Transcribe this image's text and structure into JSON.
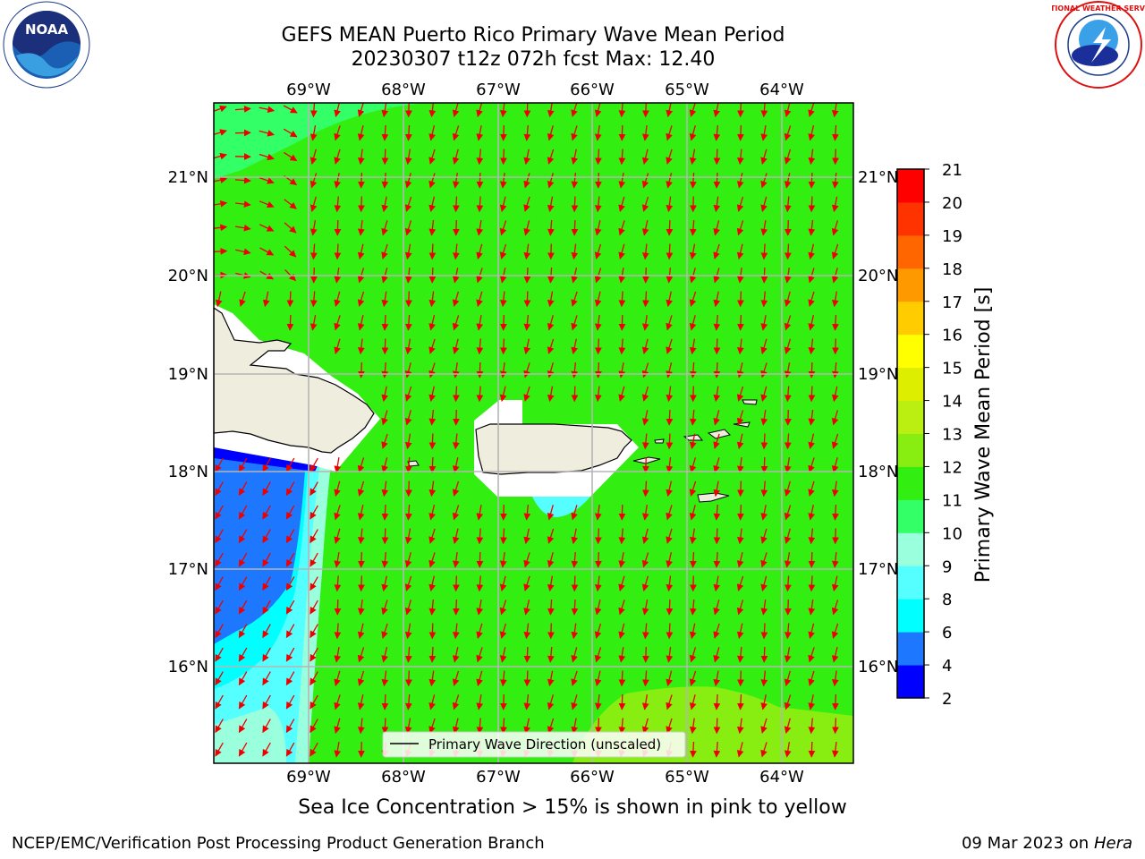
{
  "header": {
    "title_line1": "GEFS MEAN Puerto Rico Primary Wave Mean Period",
    "title_line2": "20230307 t12z 072h fcst   Max: 12.40"
  },
  "logos": {
    "left": {
      "text": "NOAA",
      "ring_text": "NATIONAL OCEANIC AND ATMOSPHERIC ADMINISTRATION · U.S. DEPARTMENT OF COMMERCE"
    },
    "right": {
      "ring_text": "NATIONAL WEATHER SERVICE"
    }
  },
  "map": {
    "lon_labels": [
      "69°W",
      "68°W",
      "67°W",
      "66°W",
      "65°W",
      "64°W"
    ],
    "lat_labels": [
      "21°N",
      "20°N",
      "19°N",
      "18°N",
      "17°N",
      "16°N"
    ],
    "legend_label": "Primary Wave Direction (unscaled)",
    "colors": {
      "ocean_main": "#33ee11",
      "ocean_swell": "#88dd33",
      "land": "#efedde",
      "arrow": "#ee0000"
    }
  },
  "colorbar": {
    "label": "Primary Wave Mean Period [s]",
    "ticks": [
      "2",
      "4",
      "6",
      "8",
      "9",
      "10",
      "11",
      "12",
      "13",
      "14",
      "15",
      "16",
      "17",
      "18",
      "19",
      "20",
      "21"
    ],
    "colors": [
      "#0000ff",
      "#1e78ff",
      "#00ffff",
      "#55ffff",
      "#99ffdd",
      "#33ff66",
      "#33ee11",
      "#88ee11",
      "#bbee11",
      "#ddee00",
      "#ffff00",
      "#ffcc00",
      "#ff9900",
      "#ff6600",
      "#ff3300",
      "#ff0000"
    ]
  },
  "note": "Sea Ice Concentration > 15% is shown in pink to yellow",
  "footer": {
    "left": "NCEP/EMC/Verification Post Processing Product Generation Branch",
    "right_date": "09 Mar 2023 on",
    "right_host": "Hera"
  }
}
